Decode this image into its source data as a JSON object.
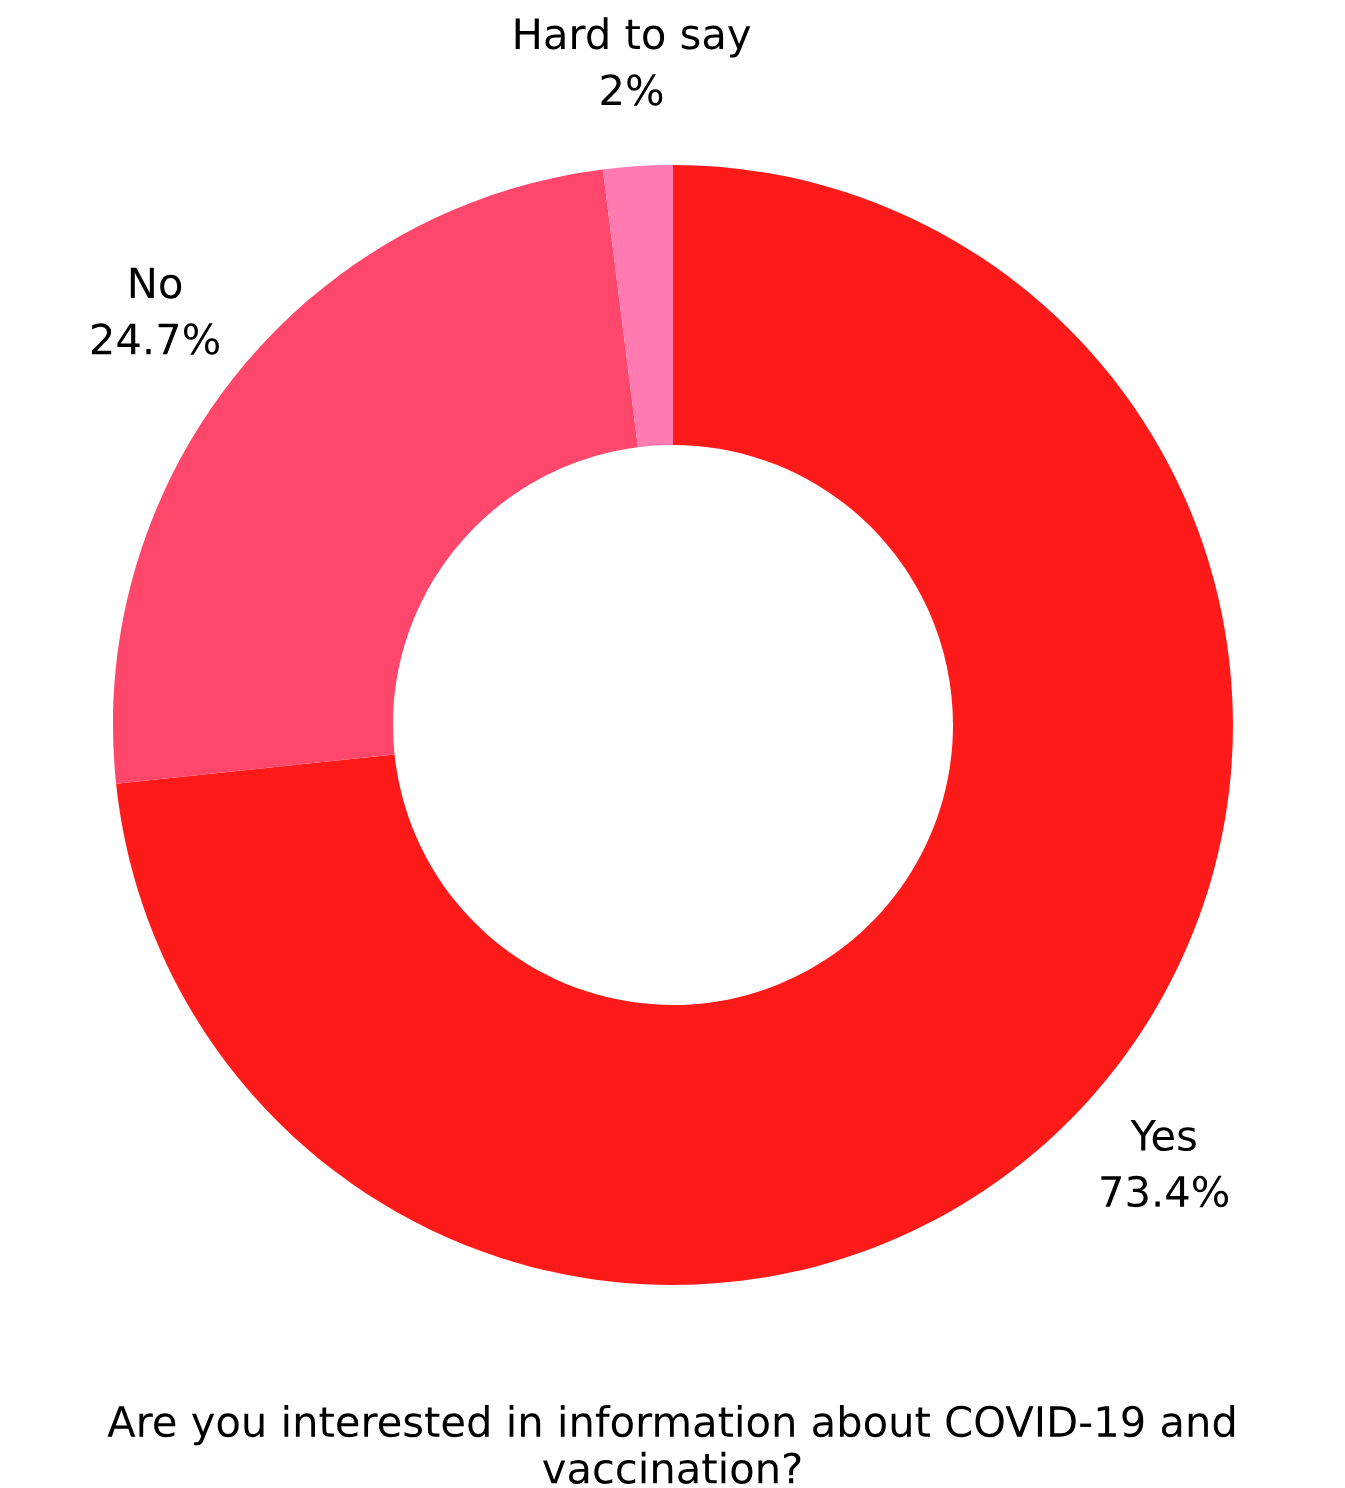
{
  "chart_data": {
    "type": "donut",
    "title": "Are you interested in information about COVID-19 and vaccination?",
    "categories": [
      "Yes",
      "No",
      "Hard to say"
    ],
    "values": [
      73.4,
      24.7,
      2
    ],
    "value_labels": [
      "73.4%",
      "24.7%",
      "2%"
    ],
    "colors": [
      "#ff1a1a",
      "#ff476b",
      "#ff7ab0"
    ],
    "legend": false
  }
}
